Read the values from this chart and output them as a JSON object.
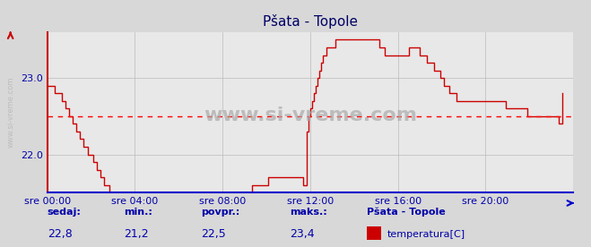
{
  "title": "Pšata - Topole",
  "bg_color": "#d8d8d8",
  "plot_bg_color": "#e8e8e8",
  "line_color": "#cc0000",
  "avg_line_color": "#ff0000",
  "avg_value": 22.5,
  "ylim": [
    21.5,
    23.6
  ],
  "yticks": [
    22.0,
    23.0
  ],
  "xlabel_color": "#0000aa",
  "ylabel_color": "#0000aa",
  "xtick_labels": [
    "sre 00:00",
    "sre 04:00",
    "sre 08:00",
    "sre 12:00",
    "sre 16:00",
    "sre 20:00"
  ],
  "xtick_positions": [
    0,
    48,
    96,
    144,
    192,
    240
  ],
  "total_points": 288,
  "watermark": "www.si-vreme.com",
  "sedaj_label": "sedaj:",
  "min_label": "min.:",
  "povpr_label": "povpr.:",
  "maks_label": "maks.:",
  "sedaj_val": "22,8",
  "min_val": "21,2",
  "povpr_val": "22,5",
  "maks_val": "23,4",
  "legend_title": "Pšata - Topole",
  "legend_entry": "temperatura[C]",
  "legend_color": "#cc0000",
  "temp_data": [
    22.9,
    22.9,
    22.9,
    22.9,
    22.8,
    22.8,
    22.8,
    22.8,
    22.7,
    22.7,
    22.6,
    22.6,
    22.5,
    22.5,
    22.4,
    22.4,
    22.3,
    22.3,
    22.2,
    22.2,
    22.1,
    22.1,
    22.0,
    22.0,
    22.0,
    21.9,
    21.9,
    21.8,
    21.8,
    21.7,
    21.7,
    21.6,
    21.6,
    21.6,
    21.5,
    21.5,
    21.5,
    21.5,
    21.5,
    21.4,
    21.4,
    21.4,
    21.4,
    21.4,
    21.3,
    21.3,
    21.3,
    21.3,
    21.2,
    21.2,
    21.2,
    21.2,
    21.2,
    21.2,
    21.2,
    21.2,
    21.2,
    21.2,
    21.2,
    21.2,
    21.2,
    21.2,
    21.3,
    21.3,
    21.3,
    21.3,
    21.3,
    21.3,
    21.3,
    21.3,
    21.3,
    21.4,
    21.4,
    21.4,
    21.4,
    21.5,
    21.5,
    21.5,
    21.5,
    21.5,
    21.5,
    21.5,
    21.5,
    21.5,
    21.5,
    21.5,
    21.5,
    21.5,
    21.5,
    21.5,
    21.5,
    21.5,
    21.5,
    21.5,
    21.5,
    21.5,
    21.5,
    21.5,
    21.5,
    21.5,
    21.5,
    21.5,
    21.5,
    21.5,
    21.5,
    21.5,
    21.5,
    21.5,
    21.5,
    21.5,
    21.5,
    21.5,
    21.6,
    21.6,
    21.6,
    21.6,
    21.6,
    21.6,
    21.6,
    21.6,
    21.6,
    21.7,
    21.7,
    21.7,
    21.7,
    21.7,
    21.7,
    21.7,
    21.7,
    21.7,
    21.7,
    21.7,
    21.7,
    21.7,
    21.7,
    21.7,
    21.7,
    21.7,
    21.7,
    21.7,
    21.6,
    21.6,
    22.3,
    22.5,
    22.6,
    22.7,
    22.8,
    22.9,
    23.0,
    23.1,
    23.2,
    23.3,
    23.3,
    23.4,
    23.4,
    23.4,
    23.4,
    23.4,
    23.5,
    23.5,
    23.5,
    23.5,
    23.5,
    23.5,
    23.5,
    23.5,
    23.5,
    23.5,
    23.5,
    23.5,
    23.5,
    23.5,
    23.5,
    23.5,
    23.5,
    23.5,
    23.5,
    23.5,
    23.5,
    23.5,
    23.5,
    23.5,
    23.4,
    23.4,
    23.4,
    23.3,
    23.3,
    23.3,
    23.3,
    23.3,
    23.3,
    23.3,
    23.3,
    23.3,
    23.3,
    23.3,
    23.3,
    23.3,
    23.4,
    23.4,
    23.4,
    23.4,
    23.4,
    23.4,
    23.3,
    23.3,
    23.3,
    23.3,
    23.2,
    23.2,
    23.2,
    23.2,
    23.1,
    23.1,
    23.1,
    23.0,
    23.0,
    22.9,
    22.9,
    22.9,
    22.8,
    22.8,
    22.8,
    22.8,
    22.7,
    22.7,
    22.7,
    22.7,
    22.7,
    22.7,
    22.7,
    22.7,
    22.7,
    22.7,
    22.7,
    22.7,
    22.7,
    22.7,
    22.7,
    22.7,
    22.7,
    22.7,
    22.7,
    22.7,
    22.7,
    22.7,
    22.7,
    22.7,
    22.7,
    22.7,
    22.7,
    22.6,
    22.6,
    22.6,
    22.6,
    22.6,
    22.6,
    22.6,
    22.6,
    22.6,
    22.6,
    22.6,
    22.6,
    22.5,
    22.5,
    22.5,
    22.5,
    22.5,
    22.5,
    22.5,
    22.5,
    22.5,
    22.5,
    22.5,
    22.5,
    22.5,
    22.5,
    22.5,
    22.5,
    22.5,
    22.4,
    22.4,
    22.8
  ]
}
